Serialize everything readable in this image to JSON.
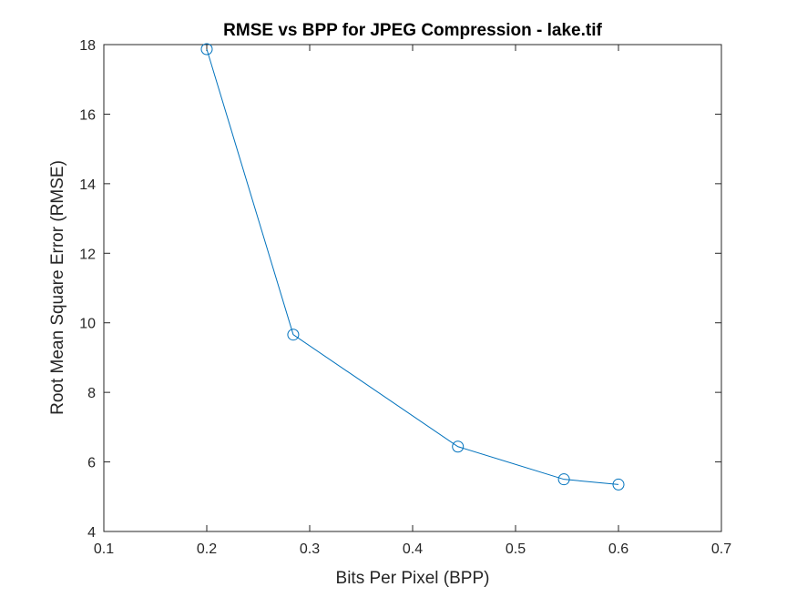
{
  "chart_data": {
    "type": "line",
    "title": "RMSE vs BPP for JPEG Compression - lake.tif",
    "xlabel": "Bits Per Pixel (BPP)",
    "ylabel": "Root Mean Square Error (RMSE)",
    "xlim": [
      0.1,
      0.7
    ],
    "ylim": [
      4,
      18
    ],
    "xticks": [
      "0.1",
      "0.2",
      "0.3",
      "0.4",
      "0.5",
      "0.6",
      "0.7"
    ],
    "yticks": [
      "4",
      "6",
      "8",
      "10",
      "12",
      "14",
      "16",
      "18"
    ],
    "grid": false,
    "marker": "circle",
    "line_color": "#0072BD",
    "series": [
      {
        "x": [
          0.2,
          0.284,
          0.444,
          0.547,
          0.6
        ],
        "y": [
          17.87,
          9.66,
          6.44,
          5.5,
          5.35
        ]
      }
    ]
  }
}
